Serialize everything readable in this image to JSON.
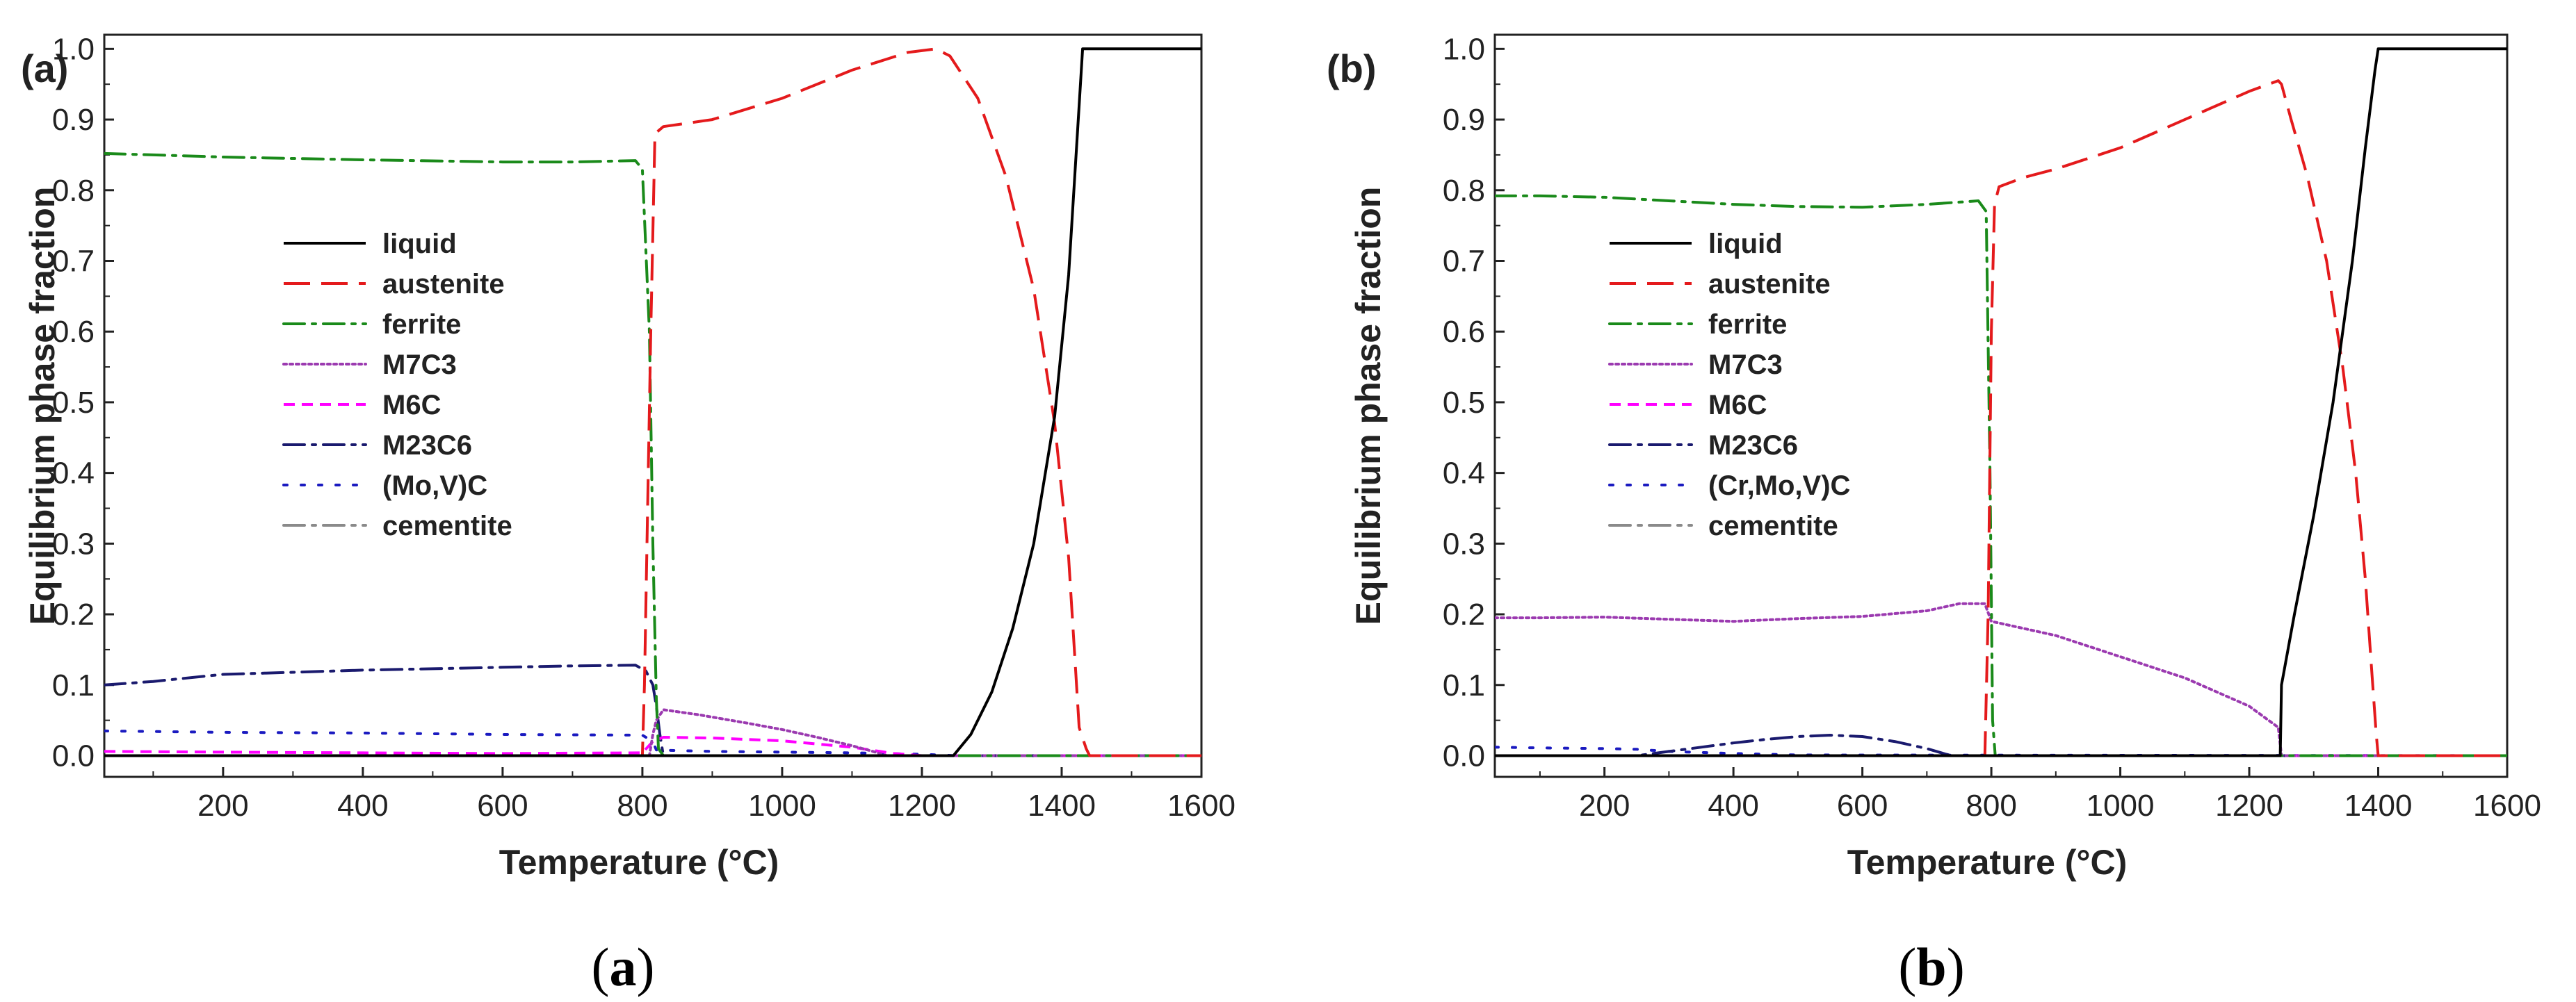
{
  "figure": {
    "panels": [
      {
        "tag": "(a)",
        "caption": {
          "open": "(",
          "letter": "a",
          "close": ")"
        }
      },
      {
        "tag": "(b)",
        "caption": {
          "open": "(",
          "letter": "b",
          "close": ")"
        }
      }
    ]
  },
  "chart_data": [
    {
      "type": "line",
      "panel_label": "(a)",
      "xlabel": "Temperature (°C)",
      "ylabel": "Equilibrium phase fraction",
      "xlim": [
        30,
        1600
      ],
      "ylim": [
        -0.03,
        1.02
      ],
      "xticks": [
        200,
        400,
        600,
        800,
        1000,
        1200,
        1400,
        1600
      ],
      "xtick_labels": [
        "200",
        "400",
        "600",
        "800",
        "1000",
        "1200",
        "1400",
        "1600"
      ],
      "yticks": [
        0.0,
        0.1,
        0.2,
        0.3,
        0.4,
        0.5,
        0.6,
        0.7,
        0.8,
        0.9,
        1.0
      ],
      "ytick_labels": [
        "0.0",
        "0.1",
        "0.2",
        "0.3",
        "0.4",
        "0.5",
        "0.6",
        "0.7",
        "0.8",
        "0.9",
        "1.0"
      ],
      "legend": "center-left",
      "series": [
        {
          "name": "liquid",
          "color": "#000000",
          "dash": "solid",
          "x": [
            30,
            1245,
            1270,
            1300,
            1330,
            1360,
            1390,
            1410,
            1425,
            1430,
            1600
          ],
          "y": [
            0,
            0,
            0.03,
            0.09,
            0.18,
            0.3,
            0.48,
            0.68,
            0.92,
            1.0,
            1.0
          ]
        },
        {
          "name": "austenite",
          "color": "#e41a1c",
          "dash": "long-dash",
          "x": [
            30,
            800,
            803,
            812,
            818,
            830,
            900,
            1000,
            1100,
            1180,
            1220,
            1240,
            1280,
            1320,
            1360,
            1390,
            1410,
            1420,
            1425,
            1435,
            1440,
            1600
          ],
          "y": [
            0,
            0,
            0.1,
            0.6,
            0.88,
            0.89,
            0.9,
            0.93,
            0.97,
            0.995,
            1.0,
            0.99,
            0.93,
            0.82,
            0.66,
            0.47,
            0.28,
            0.12,
            0.04,
            0.01,
            0,
            0
          ]
        },
        {
          "name": "ferrite",
          "color": "#1a8a1a",
          "dash": "dash-dot",
          "x": [
            30,
            100,
            200,
            400,
            600,
            700,
            790,
            800,
            810,
            815,
            820,
            823,
            830,
            1600
          ],
          "y": [
            0.852,
            0.85,
            0.847,
            0.843,
            0.84,
            0.84,
            0.842,
            0.83,
            0.6,
            0.3,
            0.08,
            0.01,
            0,
            0
          ]
        },
        {
          "name": "M7C3",
          "color": "#9b3ab0",
          "dash": "dotted",
          "x": [
            30,
            810,
            815,
            820,
            830,
            880,
            950,
            1000,
            1050,
            1100,
            1130,
            1150,
            1600
          ],
          "y": [
            0,
            0,
            0.03,
            0.05,
            0.065,
            0.058,
            0.046,
            0.037,
            0.026,
            0.014,
            0.006,
            0,
            0
          ]
        },
        {
          "name": "M6C",
          "color": "#ff00ff",
          "dash": "short-dash",
          "x": [
            30,
            200,
            400,
            600,
            800,
            815,
            830,
            900,
            1000,
            1100,
            1160,
            1200,
            1600
          ],
          "y": [
            0.006,
            0.005,
            0.004,
            0.003,
            0.004,
            0.02,
            0.026,
            0.025,
            0.021,
            0.012,
            0.003,
            0,
            0
          ]
        },
        {
          "name": "M23C6",
          "color": "#1a1a6e",
          "dash": "dash-dot",
          "x": [
            30,
            100,
            200,
            300,
            400,
            500,
            600,
            700,
            790,
            805,
            815,
            820,
            825,
            830,
            1600
          ],
          "y": [
            0.1,
            0.105,
            0.115,
            0.118,
            0.121,
            0.123,
            0.125,
            0.127,
            0.128,
            0.12,
            0.1,
            0.07,
            0.03,
            0,
            0
          ]
        },
        {
          "name": "(Mo,V)C",
          "color": "#1a1ac0",
          "dash": "sparse-dotted",
          "x": [
            30,
            200,
            400,
            600,
            800,
            815,
            820,
            900,
            1000,
            1100,
            1200,
            1250,
            1600
          ],
          "y": [
            0.035,
            0.033,
            0.032,
            0.03,
            0.029,
            0.02,
            0.008,
            0.006,
            0.005,
            0.004,
            0.002,
            0,
            0
          ]
        },
        {
          "name": "cementite",
          "color": "#8a8a8a",
          "dash": "dash-dot",
          "x": [
            30,
            1600
          ],
          "y": [
            0,
            0
          ]
        }
      ]
    },
    {
      "type": "line",
      "panel_label": "(b)",
      "xlabel": "Temperature (°C)",
      "ylabel": "Equilibrium phase fraction",
      "xlim": [
        30,
        1600
      ],
      "ylim": [
        -0.03,
        1.02
      ],
      "xticks": [
        200,
        400,
        600,
        800,
        1000,
        1200,
        1400,
        1600
      ],
      "xtick_labels": [
        "200",
        "400",
        "600",
        "800",
        "1000",
        "1200",
        "1400",
        "1600"
      ],
      "yticks": [
        0.0,
        0.1,
        0.2,
        0.3,
        0.4,
        0.5,
        0.6,
        0.7,
        0.8,
        0.9,
        1.0
      ],
      "ytick_labels": [
        "0.0",
        "0.1",
        "0.2",
        "0.3",
        "0.4",
        "0.5",
        "0.6",
        "0.7",
        "0.8",
        "0.9",
        "1.0"
      ],
      "legend": "center-left",
      "series": [
        {
          "name": "liquid",
          "color": "#000000",
          "dash": "solid",
          "x": [
            30,
            1248,
            1250,
            1252,
            1270,
            1300,
            1330,
            1360,
            1380,
            1395,
            1400,
            1600
          ],
          "y": [
            0,
            0,
            0.1,
            0.11,
            0.2,
            0.34,
            0.5,
            0.7,
            0.86,
            0.97,
            1.0,
            1.0
          ]
        },
        {
          "name": "austenite",
          "color": "#e41a1c",
          "dash": "long-dash",
          "x": [
            30,
            790,
            795,
            800,
            805,
            812,
            850,
            900,
            1000,
            1100,
            1200,
            1245,
            1250,
            1265,
            1290,
            1320,
            1345,
            1365,
            1380,
            1390,
            1397,
            1400,
            1600
          ],
          "y": [
            0,
            0,
            0.2,
            0.6,
            0.78,
            0.805,
            0.818,
            0.83,
            0.86,
            0.9,
            0.94,
            0.955,
            0.95,
            0.9,
            0.82,
            0.7,
            0.55,
            0.4,
            0.25,
            0.12,
            0.03,
            0,
            0
          ]
        },
        {
          "name": "ferrite",
          "color": "#1a8a1a",
          "dash": "dash-dot",
          "x": [
            30,
            100,
            200,
            300,
            400,
            500,
            600,
            700,
            780,
            792,
            798,
            802,
            806,
            1600
          ],
          "y": [
            0.792,
            0.792,
            0.79,
            0.785,
            0.78,
            0.777,
            0.776,
            0.78,
            0.785,
            0.77,
            0.4,
            0.05,
            0,
            0
          ]
        },
        {
          "name": "M7C3",
          "color": "#9b3ab0",
          "dash": "dotted",
          "x": [
            30,
            100,
            200,
            300,
            400,
            500,
            600,
            700,
            750,
            790,
            800,
            850,
            900,
            1000,
            1100,
            1200,
            1245,
            1250,
            1600
          ],
          "y": [
            0.195,
            0.195,
            0.196,
            0.193,
            0.19,
            0.194,
            0.197,
            0.205,
            0.215,
            0.215,
            0.19,
            0.18,
            0.17,
            0.14,
            0.11,
            0.07,
            0.04,
            0,
            0
          ]
        },
        {
          "name": "M6C",
          "color": "#ff00ff",
          "dash": "short-dash",
          "x": [
            30,
            1600
          ],
          "y": [
            0,
            0
          ]
        },
        {
          "name": "M23C6",
          "color": "#1a1a6e",
          "dash": "dash-dot",
          "x": [
            30,
            250,
            300,
            350,
            400,
            450,
            500,
            550,
            600,
            650,
            700,
            730,
            740,
            1600
          ],
          "y": [
            0,
            0,
            0.006,
            0.012,
            0.018,
            0.023,
            0.027,
            0.029,
            0.027,
            0.02,
            0.01,
            0.002,
            0,
            0
          ]
        },
        {
          "name": "(Cr,Mo,V)C",
          "color": "#1a1ac0",
          "dash": "sparse-dotted",
          "x": [
            30,
            100,
            200,
            250,
            300,
            400,
            500,
            1600
          ],
          "y": [
            0.012,
            0.011,
            0.01,
            0.009,
            0.006,
            0.003,
            0.001,
            0
          ]
        },
        {
          "name": "cementite",
          "color": "#8a8a8a",
          "dash": "dash-dot",
          "x": [
            30,
            1600
          ],
          "y": [
            0,
            0
          ]
        }
      ]
    }
  ]
}
